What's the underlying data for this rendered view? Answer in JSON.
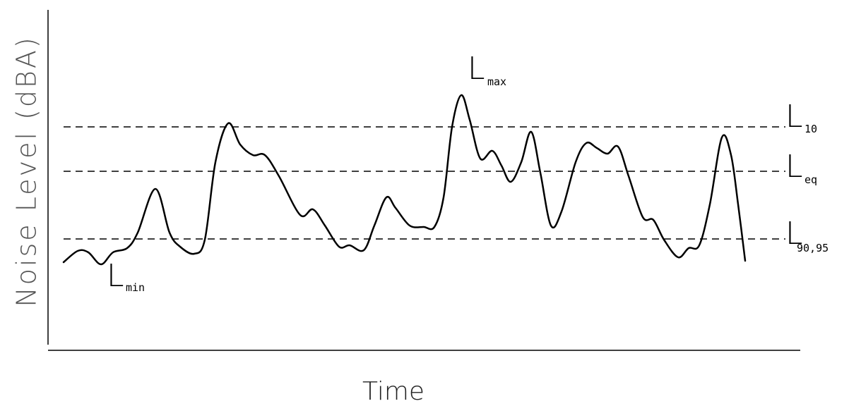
{
  "axes": {
    "y_title": "Noise Level (dBA)",
    "x_title": "Time"
  },
  "levels": [
    {
      "main": "L",
      "sub": "max"
    },
    {
      "main": "L",
      "sub": "10"
    },
    {
      "main": "L",
      "sub": "eq"
    },
    {
      "main": "L",
      "sub": "90,95"
    },
    {
      "main": "L",
      "sub": "min"
    }
  ]
}
